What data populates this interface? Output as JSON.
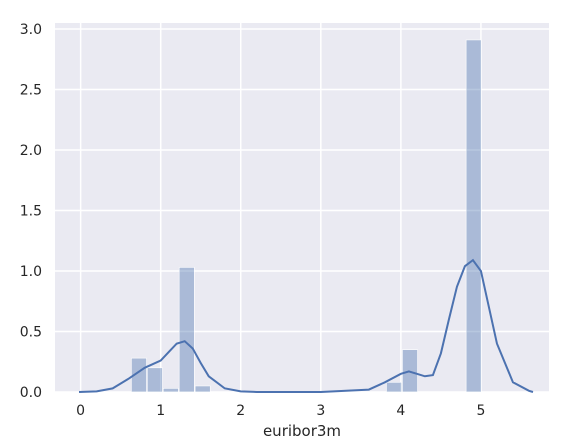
{
  "chart_data": {
    "type": "bar",
    "overlay": "kde",
    "title": "",
    "xlabel": "euribor3m",
    "ylabel": "",
    "xlim": [
      -0.32,
      5.85
    ],
    "ylim": [
      0,
      3.05
    ],
    "xticks": [
      0,
      1,
      2,
      3,
      4,
      5
    ],
    "xtick_labels": [
      "0",
      "1",
      "2",
      "3",
      "4",
      "5"
    ],
    "yticks": [
      0.0,
      0.5,
      1.0,
      1.5,
      2.0,
      2.5,
      3.0
    ],
    "ytick_labels": [
      "0.0",
      "0.5",
      "1.0",
      "1.5",
      "2.0",
      "2.5",
      "3.0"
    ],
    "grid": true,
    "colors": {
      "background": "#eaeaf2",
      "grid": "#ffffff",
      "bars": "#4c72b0",
      "bar_opacity": 0.4,
      "kde_line": "#4c72b0"
    },
    "bins": [
      {
        "x0": 0.634,
        "x1": 0.833,
        "value": 0.28
      },
      {
        "x0": 0.833,
        "x1": 1.032,
        "value": 0.2
      },
      {
        "x0": 1.032,
        "x1": 1.231,
        "value": 0.03
      },
      {
        "x0": 1.231,
        "x1": 1.43,
        "value": 1.03
      },
      {
        "x0": 1.43,
        "x1": 1.629,
        "value": 0.05
      },
      {
        "x0": 3.82,
        "x1": 4.019,
        "value": 0.08
      },
      {
        "x0": 4.019,
        "x1": 4.218,
        "value": 0.35
      },
      {
        "x0": 4.815,
        "x1": 5.014,
        "value": 2.91
      }
    ],
    "kde": {
      "x": [
        -0.02,
        0.2,
        0.4,
        0.6,
        0.8,
        1.0,
        1.1,
        1.2,
        1.3,
        1.4,
        1.5,
        1.6,
        1.8,
        2.0,
        2.2,
        3.0,
        3.6,
        3.8,
        4.0,
        4.1,
        4.2,
        4.3,
        4.4,
        4.5,
        4.6,
        4.7,
        4.8,
        4.9,
        5.0,
        5.1,
        5.2,
        5.4,
        5.6,
        5.65
      ],
      "y": [
        0.0,
        0.005,
        0.03,
        0.11,
        0.2,
        0.26,
        0.33,
        0.4,
        0.42,
        0.36,
        0.24,
        0.13,
        0.03,
        0.005,
        0.0,
        0.0,
        0.02,
        0.08,
        0.15,
        0.17,
        0.15,
        0.13,
        0.14,
        0.32,
        0.6,
        0.87,
        1.04,
        1.09,
        1.0,
        0.7,
        0.4,
        0.08,
        0.01,
        0.0
      ]
    }
  }
}
